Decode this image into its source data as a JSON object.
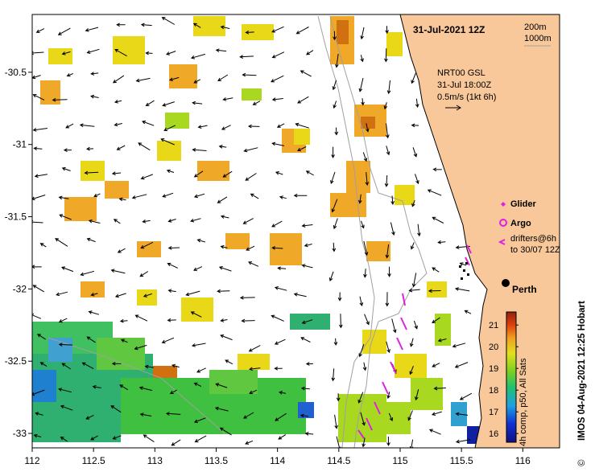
{
  "header": {
    "datetime": "31-Jul-2021 12Z"
  },
  "depth_legend": {
    "contour1": "200m",
    "contour2": "1000m"
  },
  "current_legend": {
    "product": "NRT00 GSL",
    "time": "31-Jul 18:00Z",
    "scale": "0.5m/s (1kt 6h)"
  },
  "platform_legend": {
    "glider": "Glider",
    "argo": "Argo",
    "drifters_line1": "drifters@6h",
    "drifters_line2": "to 30/07 12Z"
  },
  "places": {
    "perth": "Perth"
  },
  "colorbar": {
    "label": "4h comp, p50, All Sats",
    "ticks": [
      "16",
      "17",
      "18",
      "19",
      "20",
      "21"
    ],
    "min": 15.6,
    "max": 21.6
  },
  "credit": "IMOS 04-Aug-2021 12:25 Hobart",
  "copyright_symbol": "©",
  "axes": {
    "x_ticks": [
      "112",
      "112.5",
      "113",
      "113.5",
      "114",
      "114.5",
      "115",
      "115.5",
      "116"
    ],
    "y_ticks": [
      "-30.5",
      "-31",
      "-31.5",
      "-32",
      "-32.5",
      "-33"
    ],
    "lon_range": [
      112,
      116.3
    ],
    "lat_range": [
      -33.1,
      -30.1
    ]
  },
  "colors": {
    "land": "#f8c89a",
    "glider": "#e020e0",
    "argo": "#e020e0",
    "drifter": "#e020e0",
    "isobath": "#a0a0a0"
  }
}
